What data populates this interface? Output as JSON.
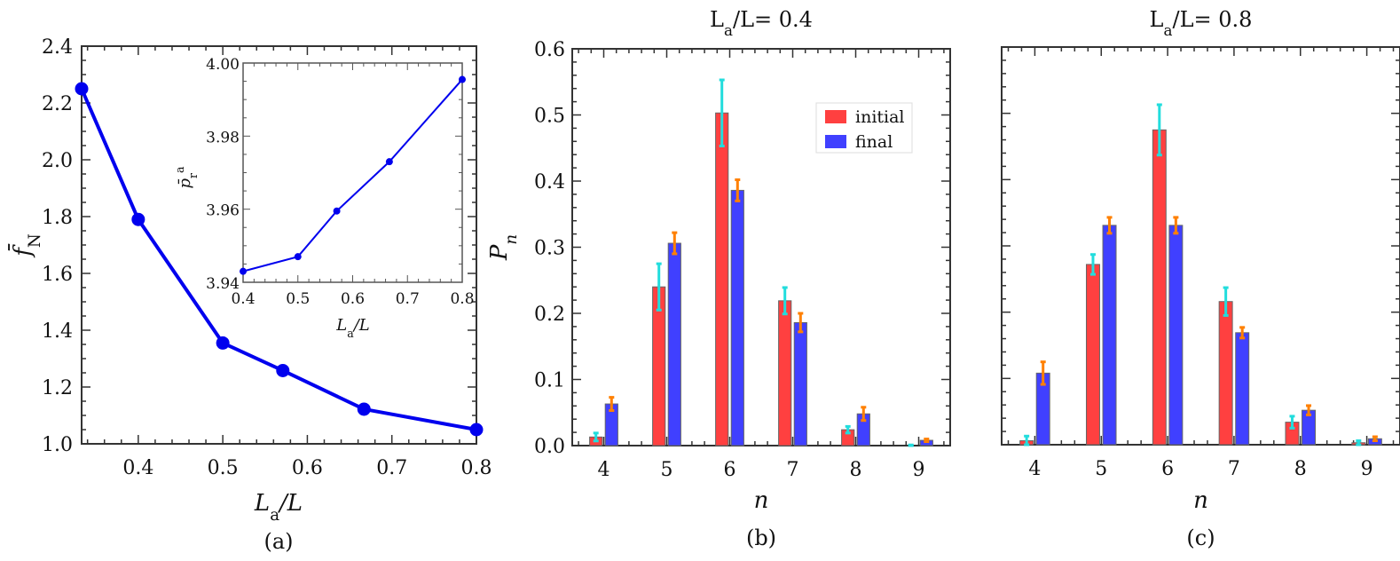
{
  "chart_data": [
    {
      "id": "a",
      "type": "line",
      "panel_label": "(a)",
      "title": "",
      "xlabel": "L_a/L",
      "ylabel": "f̄_N",
      "xlim": [
        0.333,
        0.8
      ],
      "ylim": [
        1.0,
        2.4
      ],
      "xticks": [
        0.4,
        0.5,
        0.6,
        0.7,
        0.8
      ],
      "xtick_labels": [
        "0.4",
        "0.5",
        "0.6",
        "0.7",
        "0.8"
      ],
      "yticks": [
        1.0,
        1.2,
        1.4,
        1.6,
        1.8,
        2.0,
        2.2,
        2.4
      ],
      "ytick_labels": [
        "1.0",
        "1.2",
        "1.4",
        "1.6",
        "1.8",
        "2.0",
        "2.2",
        "2.4"
      ],
      "color": "#0000ee",
      "x": [
        0.333,
        0.4,
        0.5,
        0.571,
        0.667,
        0.8
      ],
      "y": [
        2.25,
        1.79,
        1.355,
        1.258,
        1.122,
        1.05
      ],
      "inset": {
        "type": "line",
        "xlabel": "L_a/L",
        "ylabel": "p̄_r^a",
        "xlim": [
          0.4,
          0.8
        ],
        "ylim": [
          3.94,
          4.0
        ],
        "xticks": [
          0.4,
          0.5,
          0.6,
          0.7,
          0.8
        ],
        "xtick_labels": [
          "0.4",
          "0.5",
          "0.6",
          "0.7",
          "0.8"
        ],
        "yticks": [
          3.94,
          3.96,
          3.98,
          4.0
        ],
        "ytick_labels": [
          "3.94",
          "3.96",
          "3.98",
          "4.00"
        ],
        "color": "#0000ee",
        "x": [
          0.4,
          0.5,
          0.571,
          0.667,
          0.8
        ],
        "y": [
          3.943,
          3.947,
          3.9595,
          3.973,
          3.9955
        ]
      }
    },
    {
      "id": "b",
      "type": "bar",
      "panel_label": "(b)",
      "title": "L_a/L = 0.4",
      "xlabel": "n",
      "ylabel": "P_n",
      "ylim": [
        0.0,
        0.6
      ],
      "yticks": [
        0.0,
        0.1,
        0.2,
        0.3,
        0.4,
        0.5,
        0.6
      ],
      "ytick_labels": [
        "0.0",
        "0.1",
        "0.2",
        "0.3",
        "0.4",
        "0.5",
        "0.6"
      ],
      "show_ytick_labels": true,
      "categories": [
        "4",
        "5",
        "6",
        "7",
        "8",
        "9"
      ],
      "legend": {
        "position": "upper-right",
        "entries": [
          "initial",
          "final"
        ]
      },
      "series": [
        {
          "name": "initial",
          "color": "#ff4040",
          "error_color": "#22dddd",
          "values": [
            0.013,
            0.24,
            0.503,
            0.219,
            0.024,
            0.0
          ],
          "errors": [
            0.006,
            0.035,
            0.05,
            0.02,
            0.005,
            0.001
          ]
        },
        {
          "name": "final",
          "color": "#4040ff",
          "error_color": "#ff8000",
          "values": [
            0.063,
            0.306,
            0.386,
            0.186,
            0.048,
            0.008
          ],
          "errors": [
            0.01,
            0.016,
            0.016,
            0.014,
            0.01,
            0.002
          ]
        }
      ]
    },
    {
      "id": "c",
      "type": "bar",
      "panel_label": "(c)",
      "title": "L_a/L = 0.8",
      "xlabel": "n",
      "ylabel": "",
      "ylim": [
        0.0,
        0.6
      ],
      "yticks": [
        0.0,
        0.1,
        0.2,
        0.3,
        0.4,
        0.5,
        0.6
      ],
      "ytick_labels": [
        "",
        "",
        "",
        "",
        "",
        "",
        ""
      ],
      "show_ytick_labels": false,
      "categories": [
        "4",
        "5",
        "6",
        "7",
        "8",
        "9"
      ],
      "legend": null,
      "series": [
        {
          "name": "initial",
          "color": "#ff4040",
          "error_color": "#22dddd",
          "values": [
            0.006,
            0.272,
            0.475,
            0.216,
            0.034,
            0.003
          ],
          "errors": [
            0.007,
            0.015,
            0.038,
            0.021,
            0.009,
            0.003
          ]
        },
        {
          "name": "final",
          "color": "#4040ff",
          "error_color": "#ff8000",
          "values": [
            0.108,
            0.331,
            0.331,
            0.169,
            0.052,
            0.009
          ],
          "errors": [
            0.017,
            0.012,
            0.012,
            0.008,
            0.007,
            0.003
          ]
        }
      ]
    }
  ]
}
